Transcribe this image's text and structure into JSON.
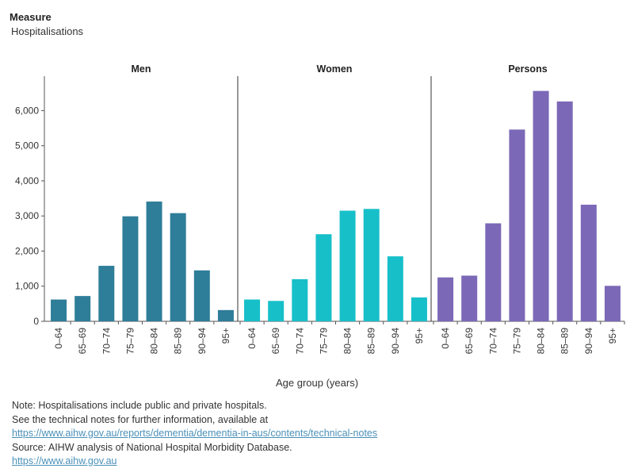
{
  "measure": {
    "label": "Measure",
    "value": "Hospitalisations"
  },
  "chart_data": {
    "type": "bar",
    "xlabel": "Age group (years)",
    "ylabel": "",
    "ylim": [
      0,
      6800
    ],
    "yticks": [
      0,
      1000,
      2000,
      3000,
      4000,
      5000,
      6000
    ],
    "ytick_labels": [
      "0",
      "1,000",
      "2,000",
      "3,000",
      "4,000",
      "5,000",
      "6,000"
    ],
    "categories": [
      "0–64",
      "65–69",
      "70–74",
      "75–79",
      "80–84",
      "85–89",
      "90–94",
      "95+"
    ],
    "panels": [
      {
        "name": "Men",
        "color": "#2e7d99",
        "values": [
          620,
          720,
          1580,
          2990,
          3410,
          3080,
          1450,
          320
        ]
      },
      {
        "name": "Women",
        "color": "#17bfc9",
        "values": [
          620,
          580,
          1200,
          2480,
          3150,
          3200,
          1850,
          680
        ]
      },
      {
        "name": "Persons",
        "color": "#7b68b6",
        "values": [
          1250,
          1300,
          2790,
          5460,
          6560,
          6260,
          3320,
          1010
        ]
      }
    ],
    "grid": false
  },
  "notes": {
    "line1": "Note: Hospitalisations include public and private hospitals.",
    "line2": "See the technical notes for further information, available at",
    "link1": "https://www.aihw.gov.au/reports/dementia/dementia-in-aus/contents/technical-notes",
    "line3": "Source:  AIHW analysis of National Hospital Morbidity Database.",
    "link2": "https://www.aihw.gov.au"
  }
}
